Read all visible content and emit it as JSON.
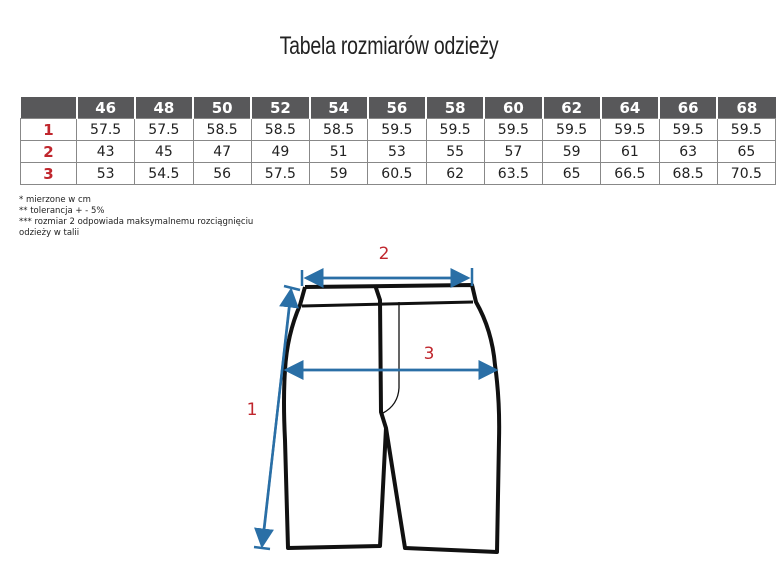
{
  "title": "Tabela rozmiarów odzieży",
  "table": {
    "headers": [
      "",
      "46",
      "48",
      "50",
      "52",
      "54",
      "56",
      "58",
      "60",
      "62",
      "64",
      "66",
      "68"
    ],
    "rows": [
      {
        "label": "1",
        "values": [
          "57.5",
          "57.5",
          "58.5",
          "58.5",
          "58.5",
          "59.5",
          "59.5",
          "59.5",
          "59.5",
          "59.5",
          "59.5",
          "59.5"
        ]
      },
      {
        "label": "2",
        "values": [
          "43",
          "45",
          "47",
          "49",
          "51",
          "53",
          "55",
          "57",
          "59",
          "61",
          "63",
          "65"
        ]
      },
      {
        "label": "3",
        "values": [
          "53",
          "54.5",
          "56",
          "57.5",
          "59",
          "60.5",
          "62",
          "63.5",
          "65",
          "66.5",
          "68.5",
          "70.5"
        ]
      }
    ]
  },
  "notes": [
    "*   mierzone w cm",
    "**   tolerancja + - 5%",
    "***    rozmiar 2 odpowiada maksymalnemu rozciągnięciu",
    "odzieży w talii"
  ],
  "diagram": {
    "labels": [
      "1",
      "2",
      "3"
    ],
    "arrow_color": "#2a6fa6",
    "label_color": "#c0262d"
  }
}
